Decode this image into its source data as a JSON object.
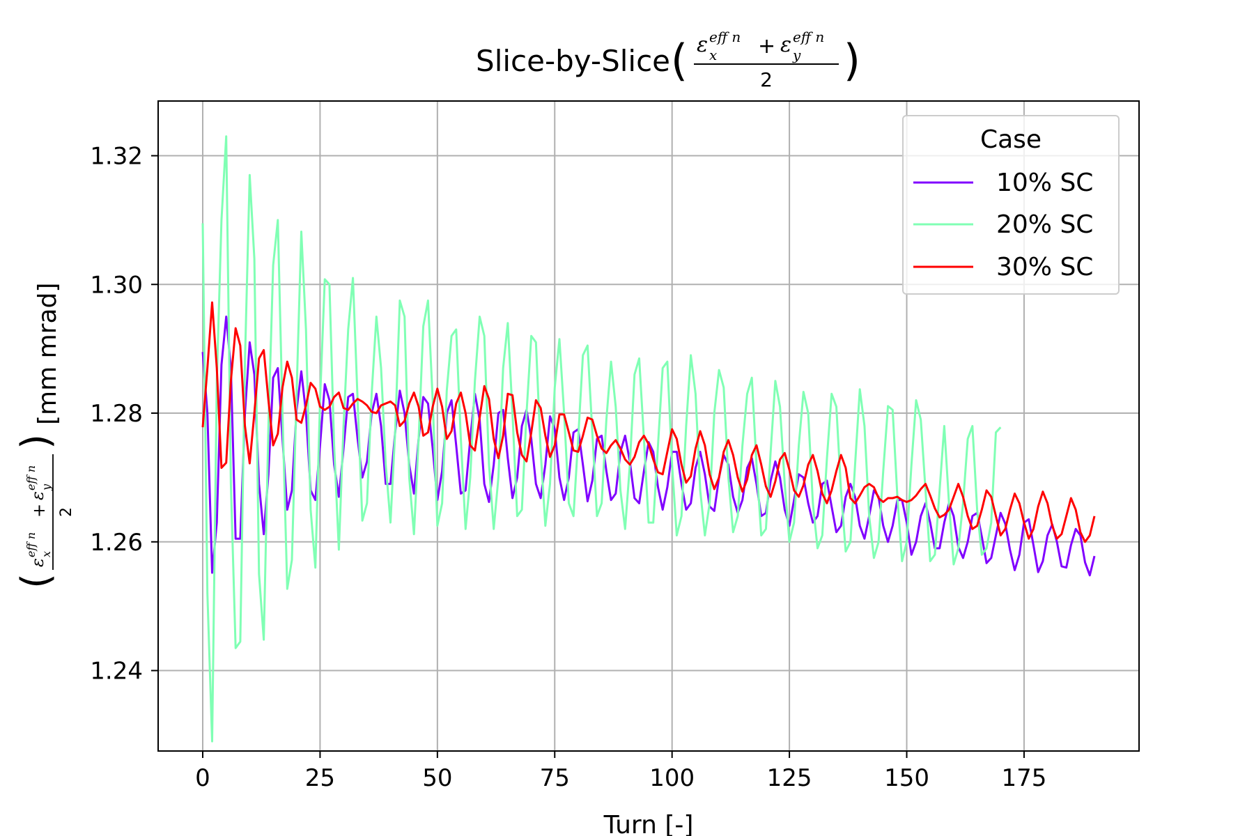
{
  "chart_data": {
    "type": "line",
    "title": "Slice-by-Slice",
    "title_math": {
      "numerator_x_symbol": "ε",
      "numerator_x_sup": "eff n",
      "numerator_x_sub": "x",
      "plus": "+",
      "numerator_y_symbol": "ε",
      "numerator_y_sup": "eff n",
      "numerator_y_sub": "y",
      "denominator": "2"
    },
    "xlabel": "Turn [-]",
    "ylabel_unit": "[mm mrad]",
    "xlim": [
      -9.5,
      199.5
    ],
    "ylim": [
      1.2275,
      1.3285
    ],
    "xticks": [
      0,
      25,
      50,
      75,
      100,
      125,
      150,
      175
    ],
    "xtick_labels": [
      "0",
      "25",
      "50",
      "75",
      "100",
      "125",
      "150",
      "175"
    ],
    "yticks": [
      1.24,
      1.26,
      1.28,
      1.3,
      1.32
    ],
    "ytick_labels": [
      "1.24",
      "1.26",
      "1.28",
      "1.30",
      "1.32"
    ],
    "grid": true,
    "legend": {
      "title": "Case",
      "position": "top-right",
      "entries": [
        "10% SC",
        "20% SC",
        "30% SC"
      ]
    },
    "series": [
      {
        "name": "10% SC",
        "color": "#8000ff",
        "x_start": 0,
        "values": [
          1.2895,
          1.28,
          1.2552,
          1.263,
          1.2875,
          1.295,
          1.287,
          1.2605,
          1.2605,
          1.28,
          1.291,
          1.286,
          1.269,
          1.2612,
          1.2705,
          1.2855,
          1.287,
          1.276,
          1.265,
          1.268,
          1.2805,
          1.2865,
          1.28,
          1.268,
          1.2665,
          1.275,
          1.2845,
          1.282,
          1.272,
          1.267,
          1.2745,
          1.2825,
          1.283,
          1.276,
          1.27,
          1.2725,
          1.28,
          1.283,
          1.278,
          1.269,
          1.269,
          1.277,
          1.2835,
          1.28,
          1.272,
          1.2675,
          1.276,
          1.2825,
          1.2815,
          1.2745,
          1.2665,
          1.271,
          1.28,
          1.282,
          1.275,
          1.2675,
          1.268,
          1.276,
          1.283,
          1.279,
          1.269,
          1.2662,
          1.272,
          1.28,
          1.2805,
          1.273,
          1.2668,
          1.27,
          1.278,
          1.2805,
          1.276,
          1.269,
          1.2668,
          1.272,
          1.2795,
          1.2775,
          1.27,
          1.2665,
          1.27,
          1.277,
          1.2775,
          1.272,
          1.2663,
          1.2695,
          1.276,
          1.2765,
          1.271,
          1.2665,
          1.2675,
          1.274,
          1.2765,
          1.2725,
          1.2668,
          1.266,
          1.271,
          1.2755,
          1.274,
          1.2685,
          1.265,
          1.2685,
          1.274,
          1.274,
          1.269,
          1.265,
          1.266,
          1.2715,
          1.274,
          1.2705,
          1.2655,
          1.2648,
          1.27,
          1.2735,
          1.272,
          1.267,
          1.2645,
          1.2665,
          1.2715,
          1.273,
          1.269,
          1.264,
          1.2645,
          1.2695,
          1.2725,
          1.27,
          1.265,
          1.2625,
          1.2665,
          1.2705,
          1.27,
          1.266,
          1.263,
          1.264,
          1.269,
          1.2695,
          1.2655,
          1.2615,
          1.2625,
          1.267,
          1.269,
          1.267,
          1.2625,
          1.2605,
          1.264,
          1.268,
          1.267,
          1.2625,
          1.26,
          1.2625,
          1.2665,
          1.2665,
          1.263,
          1.258,
          1.26,
          1.264,
          1.266,
          1.263,
          1.259,
          1.259,
          1.263,
          1.266,
          1.264,
          1.2592,
          1.2575,
          1.26,
          1.264,
          1.2645,
          1.2608,
          1.2567,
          1.2575,
          1.261,
          1.2645,
          1.2628,
          1.2588,
          1.2556,
          1.258,
          1.263,
          1.2635,
          1.2595,
          1.2553,
          1.257,
          1.261,
          1.2627,
          1.26,
          1.2562,
          1.256,
          1.2595,
          1.262,
          1.261,
          1.2568,
          1.2548,
          1.2578
        ]
      },
      {
        "name": "20% SC",
        "color": "#80ffb4",
        "x_start": 0,
        "values": [
          1.3095,
          1.252,
          1.229,
          1.285,
          1.31,
          1.323,
          1.269,
          1.2435,
          1.2445,
          1.288,
          1.317,
          1.304,
          1.255,
          1.2448,
          1.278,
          1.303,
          1.31,
          1.28,
          1.2527,
          1.2572,
          1.283,
          1.3082,
          1.293,
          1.265,
          1.256,
          1.282,
          1.3008,
          1.3,
          1.275,
          1.2588,
          1.278,
          1.293,
          1.301,
          1.282,
          1.2633,
          1.266,
          1.283,
          1.295,
          1.287,
          1.272,
          1.263,
          1.277,
          1.2975,
          1.295,
          1.27,
          1.2612,
          1.276,
          1.2935,
          1.2975,
          1.282,
          1.2625,
          1.266,
          1.2835,
          1.292,
          1.293,
          1.276,
          1.262,
          1.27,
          1.285,
          1.295,
          1.292,
          1.272,
          1.262,
          1.27,
          1.287,
          1.294,
          1.28,
          1.264,
          1.265,
          1.28,
          1.292,
          1.291,
          1.274,
          1.2625,
          1.269,
          1.284,
          1.2915,
          1.28,
          1.266,
          1.264,
          1.276,
          1.289,
          1.2905,
          1.277,
          1.264,
          1.266,
          1.279,
          1.288,
          1.281,
          1.268,
          1.262,
          1.272,
          1.286,
          1.2885,
          1.276,
          1.263,
          1.263,
          1.275,
          1.287,
          1.288,
          1.272,
          1.261,
          1.264,
          1.278,
          1.289,
          1.283,
          1.268,
          1.261,
          1.266,
          1.28,
          1.2867,
          1.284,
          1.27,
          1.2615,
          1.264,
          1.275,
          1.283,
          1.2855,
          1.272,
          1.261,
          1.262,
          1.274,
          1.285,
          1.281,
          1.269,
          1.26,
          1.263,
          1.275,
          1.2833,
          1.28,
          1.266,
          1.259,
          1.261,
          1.273,
          1.283,
          1.281,
          1.268,
          1.2585,
          1.26,
          1.272,
          1.2837,
          1.278,
          1.264,
          1.2575,
          1.26,
          1.271,
          1.2811,
          1.2805,
          1.267,
          1.257,
          1.26,
          1.272,
          1.282,
          1.279,
          1.268,
          1.257,
          1.258,
          1.268,
          1.278,
          1.266,
          1.2565,
          1.259,
          1.266,
          1.276,
          1.278,
          1.265,
          1.258,
          1.259,
          1.263,
          1.277,
          1.2778
        ]
      },
      {
        "name": "30% SC",
        "color": "#ff0000",
        "x_start": 0,
        "values": [
          1.2778,
          1.287,
          1.2972,
          1.287,
          1.2715,
          1.2723,
          1.285,
          1.2932,
          1.2905,
          1.278,
          1.2722,
          1.28,
          1.2885,
          1.2898,
          1.282,
          1.275,
          1.2768,
          1.284,
          1.288,
          1.2855,
          1.279,
          1.2785,
          1.2812,
          1.2847,
          1.2838,
          1.281,
          1.2805,
          1.281,
          1.2825,
          1.2832,
          1.2808,
          1.2805,
          1.2815,
          1.2822,
          1.2818,
          1.2812,
          1.2802,
          1.28,
          1.2812,
          1.2815,
          1.2818,
          1.2812,
          1.278,
          1.2788,
          1.2815,
          1.2832,
          1.281,
          1.2765,
          1.277,
          1.281,
          1.2838,
          1.281,
          1.276,
          1.2772,
          1.2815,
          1.2832,
          1.28,
          1.275,
          1.2742,
          1.2793,
          1.2842,
          1.2822,
          1.276,
          1.273,
          1.2765,
          1.283,
          1.2828,
          1.277,
          1.2735,
          1.2725,
          1.277,
          1.282,
          1.2808,
          1.2765,
          1.2732,
          1.275,
          1.2798,
          1.2798,
          1.277,
          1.2742,
          1.274,
          1.2765,
          1.2793,
          1.279,
          1.2765,
          1.2745,
          1.2738,
          1.275,
          1.2758,
          1.2745,
          1.2728,
          1.272,
          1.2732,
          1.2755,
          1.2765,
          1.2752,
          1.2728,
          1.2708,
          1.2705,
          1.274,
          1.2775,
          1.276,
          1.272,
          1.2692,
          1.2702,
          1.2745,
          1.2772,
          1.275,
          1.2705,
          1.2682,
          1.27,
          1.274,
          1.2758,
          1.2735,
          1.27,
          1.2678,
          1.2697,
          1.2735,
          1.275,
          1.272,
          1.2686,
          1.267,
          1.2694,
          1.2728,
          1.2738,
          1.2712,
          1.268,
          1.267,
          1.2688,
          1.272,
          1.2735,
          1.271,
          1.2675,
          1.266,
          1.268,
          1.271,
          1.2735,
          1.2715,
          1.2668,
          1.266,
          1.2672,
          1.2685,
          1.269,
          1.2685,
          1.2668,
          1.2662,
          1.2668,
          1.2668,
          1.267,
          1.2665,
          1.2662,
          1.2665,
          1.2672,
          1.2682,
          1.269,
          1.2672,
          1.2652,
          1.2638,
          1.2642,
          1.265,
          1.267,
          1.269,
          1.267,
          1.264,
          1.262,
          1.2625,
          1.265,
          1.268,
          1.267,
          1.264,
          1.261,
          1.262,
          1.265,
          1.2675,
          1.266,
          1.263,
          1.2605,
          1.262,
          1.2655,
          1.2678,
          1.266,
          1.2625,
          1.2605,
          1.2612,
          1.264,
          1.2668,
          1.265,
          1.2615,
          1.26,
          1.261,
          1.264
        ]
      }
    ]
  }
}
